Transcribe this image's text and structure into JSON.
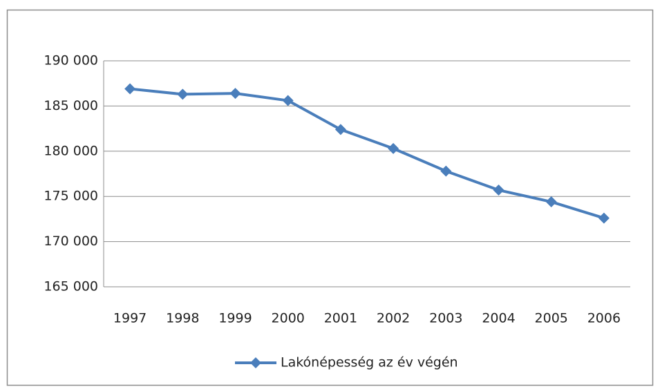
{
  "chart_data": {
    "type": "line",
    "categories": [
      "1997",
      "1998",
      "1999",
      "2000",
      "2001",
      "2002",
      "2003",
      "2004",
      "2005",
      "2006"
    ],
    "series": [
      {
        "name": "Lakónépesség az év végén",
        "color": "#4a7ebb",
        "values": [
          186900,
          186300,
          186400,
          185600,
          182400,
          180300,
          177800,
          175700,
          174400,
          172600
        ]
      }
    ],
    "ylim": [
      165000,
      190000
    ],
    "yticks": [
      {
        "value": 165000,
        "label": "165 000"
      },
      {
        "value": 170000,
        "label": "170 000"
      },
      {
        "value": 175000,
        "label": "175 000"
      },
      {
        "value": 180000,
        "label": "180 000"
      },
      {
        "value": 185000,
        "label": "185 000"
      },
      {
        "value": 190000,
        "label": "190 000"
      }
    ],
    "grid": true,
    "legend": "bottom"
  }
}
